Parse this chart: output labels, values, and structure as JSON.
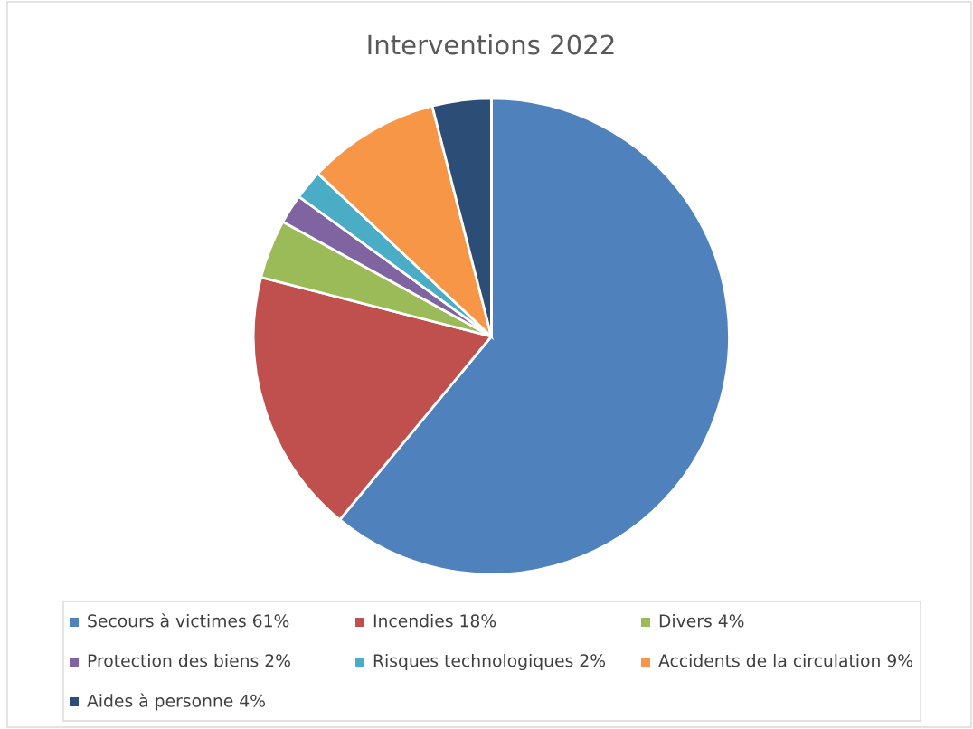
{
  "chart_data": {
    "type": "pie",
    "title": "Interventions 2022",
    "categories": [
      "Secours à victimes 61%",
      "Incendies 18%",
      "Divers 4%",
      "Protection des biens 2%",
      "Risques technologiques 2%",
      "Accidents de la circulation 9%",
      "Aides à personne 4%"
    ],
    "values": [
      61,
      18,
      4,
      2,
      2,
      9,
      4
    ],
    "colors": [
      "#4f81bd",
      "#c0504d",
      "#9bbb59",
      "#8064a2",
      "#4bacc6",
      "#f79646",
      "#2c4d75"
    ],
    "legend": "bottom"
  }
}
